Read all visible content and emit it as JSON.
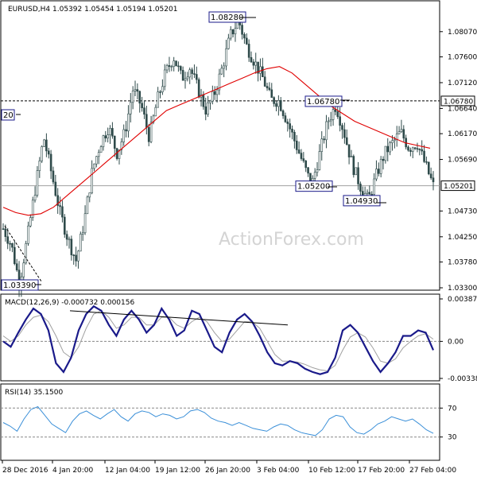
{
  "chart_data": [
    {
      "type": "candlestick",
      "title": "EURUSD,H4",
      "ohlc_header": "1.05392 1.05454 1.05194 1.05201",
      "watermark": "ActionForex.com",
      "ylim": [
        1.033,
        1.086
      ],
      "yticks": [
        "1.08070",
        "1.07600",
        "1.07120",
        "1.06640",
        "1.06170",
        "1.05690",
        "1.04730",
        "1.04250",
        "1.03780",
        "1.03300"
      ],
      "current_price": "1.05201",
      "resistance_level": "1.06780",
      "moving_average_color": "#e00000",
      "price_path": [
        1.044,
        1.041,
        1.0339,
        1.0425,
        1.052,
        1.061,
        1.054,
        1.047,
        1.042,
        1.038,
        1.0455,
        1.055,
        1.06,
        1.063,
        1.058,
        1.062,
        1.07,
        1.067,
        1.061,
        1.068,
        1.073,
        1.076,
        1.072,
        1.074,
        1.07,
        1.066,
        1.069,
        1.074,
        1.08,
        1.0828,
        1.078,
        1.075,
        1.072,
        1.068,
        1.0678,
        1.064,
        1.06,
        1.056,
        1.052,
        1.058,
        1.064,
        1.067,
        1.062,
        1.056,
        1.052,
        1.0493,
        1.054,
        1.058,
        1.06,
        1.062,
        1.059,
        1.06,
        1.056,
        1.052
      ],
      "ma_path": [
        1.048,
        1.047,
        1.0465,
        1.0468,
        1.048,
        1.05,
        1.052,
        1.054,
        1.056,
        1.058,
        1.06,
        1.062,
        1.064,
        1.066,
        1.067,
        1.068,
        1.069,
        1.07,
        1.071,
        1.072,
        1.073,
        1.0738,
        1.0742,
        1.073,
        1.071,
        1.069,
        1.067,
        1.0655,
        1.064,
        1.063,
        1.062,
        1.061,
        1.06,
        1.0595,
        1.059
      ],
      "annotations": [
        {
          "label": "1.08280",
          "value": 1.0828
        },
        {
          "label": "1.06780",
          "value": 1.0678
        },
        {
          "label": "1.05200",
          "value": 1.052
        },
        {
          "label": "1.04930",
          "value": 1.0493
        },
        {
          "label": "1.03390",
          "value": 1.0339
        },
        {
          "label": "20",
          "value": 1.065
        }
      ]
    },
    {
      "type": "line",
      "title": "MACD(12,26,9) -0.000732 0.000156",
      "ylim": [
        -0.003387,
        0.003879
      ],
      "yticks": [
        "0.003879",
        "0.00",
        "-0.003387"
      ],
      "series": [
        {
          "values": [
            0.0,
            -0.0005,
            0.0008,
            0.002,
            0.003,
            0.0025,
            0.001,
            -0.002,
            -0.0028,
            -0.0015,
            0.001,
            0.0025,
            0.0032,
            0.0028,
            0.0015,
            0.0005,
            0.002,
            0.0028,
            0.002,
            0.0008,
            0.0015,
            0.003,
            0.002,
            0.0005,
            0.001,
            0.0028,
            0.0025,
            0.001,
            -0.0005,
            -0.001,
            0.0008,
            0.002,
            0.0025,
            0.0018,
            0.0005,
            -0.001,
            -0.002,
            -0.0022,
            -0.0018,
            -0.002,
            -0.0025,
            -0.0028,
            -0.003,
            -0.0028,
            -0.0015,
            0.001,
            0.0015,
            0.0008,
            -0.0005,
            -0.0018,
            -0.0028,
            -0.002,
            -0.001,
            0.0005,
            0.0005,
            0.001,
            0.0008,
            -0.0008
          ]
        },
        {
          "values": [
            0.0005,
            0.0,
            0.0005,
            0.0015,
            0.0022,
            0.0024,
            0.0018,
            0.0005,
            -0.001,
            -0.0015,
            -0.0005,
            0.0012,
            0.0025,
            0.0028,
            0.0022,
            0.0012,
            0.0015,
            0.0022,
            0.0022,
            0.0015,
            0.0015,
            0.0022,
            0.0022,
            0.0015,
            0.0012,
            0.0018,
            0.0022,
            0.0018,
            0.0008,
            0.0,
            0.0002,
            0.001,
            0.0018,
            0.0018,
            0.0012,
            0.0,
            -0.0012,
            -0.0018,
            -0.0018,
            -0.0019,
            -0.0021,
            -0.0024,
            -0.0026,
            -0.0027,
            -0.0022,
            -0.0008,
            0.0004,
            0.0008,
            0.0004,
            -0.0006,
            -0.0018,
            -0.002,
            -0.0016,
            -0.0006,
            0.0,
            0.0005,
            0.0007,
            0.0002
          ]
        }
      ],
      "divergence_line": [
        0.0028,
        0.0015
      ]
    },
    {
      "type": "line",
      "title": "RSI(14) 35.1500",
      "ylim": [
        0,
        100
      ],
      "yticks": [
        "70",
        "30"
      ],
      "series": [
        {
          "values": [
            50,
            45,
            38,
            55,
            68,
            72,
            60,
            48,
            42,
            36,
            52,
            62,
            66,
            60,
            55,
            62,
            68,
            58,
            52,
            62,
            66,
            64,
            58,
            62,
            60,
            55,
            58,
            66,
            68,
            64,
            56,
            52,
            50,
            46,
            50,
            46,
            42,
            40,
            38,
            44,
            48,
            46,
            40,
            36,
            34,
            32,
            40,
            55,
            60,
            58,
            44,
            36,
            34,
            40,
            48,
            52,
            58,
            55,
            52,
            55,
            48,
            40,
            35
          ]
        }
      ]
    }
  ],
  "x_axis": {
    "labels": [
      "28 Dec 2016",
      "4 Jan 20:00",
      "12 Jan 04:00",
      "19 Jan 12:00",
      "26 Jan 20:00",
      "3 Feb 04:00",
      "10 Feb 12:00",
      "17 Feb 20:00",
      "27 Feb 04:00"
    ]
  }
}
